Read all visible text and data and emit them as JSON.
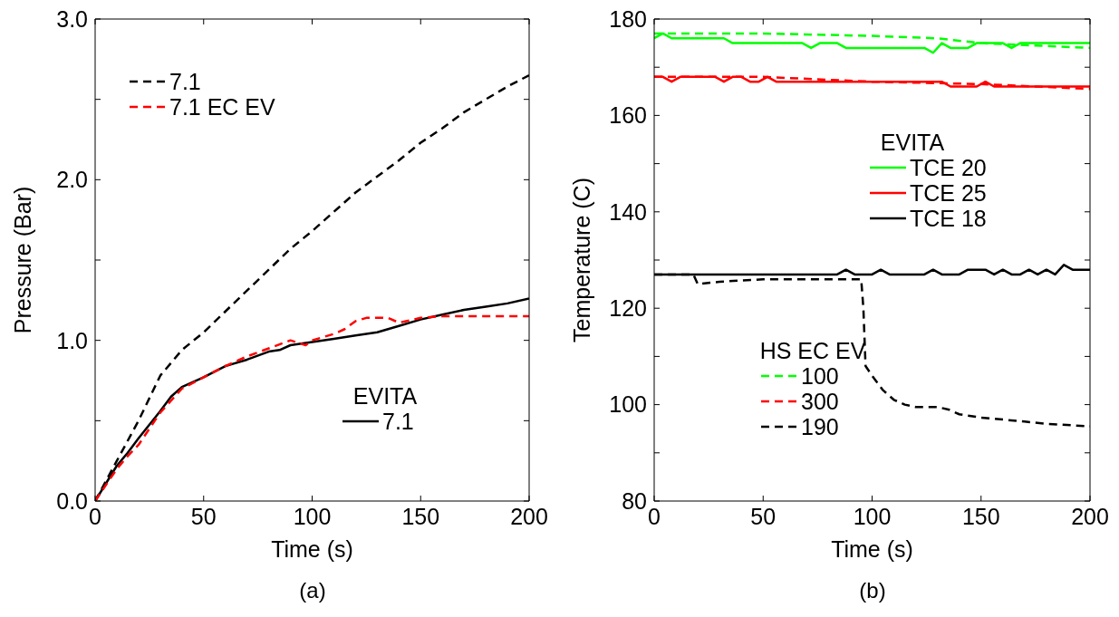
{
  "chart_data": [
    {
      "type": "line",
      "title": "(a)",
      "xlabel": "Time (s)",
      "ylabel": "Pressure (Bar)",
      "legend_title": "EVITA",
      "legend": "left",
      "marker": "none",
      "grid": false,
      "xlim": [
        0,
        200
      ],
      "xticks": [
        0,
        50,
        100,
        150,
        200
      ],
      "ylim": [
        0,
        3
      ],
      "yticks": [
        {
          "value": 0,
          "label": "0.0"
        },
        {
          "value": 0.5,
          "label": null
        },
        {
          "value": 1,
          "label": "1.0"
        },
        {
          "value": 1.5,
          "label": null
        },
        {
          "value": 2,
          "label": "2.0"
        },
        {
          "value": 2.5,
          "label": null
        },
        {
          "value": 3,
          "label": "3.0"
        }
      ],
      "series": [
        {
          "name": "7.1",
          "color": "#000000",
          "line_style": "solid",
          "x": [
            0,
            10,
            15,
            20,
            30,
            35,
            40,
            50,
            60,
            70,
            80,
            85,
            90,
            100,
            110,
            120,
            130,
            140,
            150,
            160,
            170,
            180,
            190,
            200
          ],
          "values": [
            0,
            0.22,
            0.3,
            0.39,
            0.56,
            0.65,
            0.71,
            0.77,
            0.84,
            0.88,
            0.93,
            0.94,
            0.97,
            0.99,
            1.01,
            1.03,
            1.05,
            1.09,
            1.13,
            1.16,
            1.19,
            1.21,
            1.23,
            1.26
          ]
        },
        {
          "name": "7.1",
          "color": "#000000",
          "line_style": "dashed",
          "x": [
            0,
            10,
            20,
            30,
            40,
            50,
            60,
            70,
            80,
            90,
            100,
            110,
            120,
            130,
            140,
            150,
            160,
            170,
            180,
            190,
            200
          ],
          "values": [
            0,
            0.25,
            0.5,
            0.78,
            0.94,
            1.05,
            1.18,
            1.31,
            1.44,
            1.57,
            1.68,
            1.8,
            1.92,
            2.02,
            2.12,
            2.23,
            2.32,
            2.42,
            2.5,
            2.58,
            2.65
          ]
        },
        {
          "name": "7.1 EC EV",
          "color": "#ff0000",
          "line_style": "dashed",
          "x": [
            0,
            10,
            15,
            20,
            30,
            40,
            50,
            60,
            70,
            80,
            90,
            97,
            100,
            110,
            115,
            120,
            125,
            135,
            140,
            150,
            160,
            200
          ],
          "values": [
            0,
            0.2,
            0.28,
            0.35,
            0.55,
            0.7,
            0.77,
            0.84,
            0.9,
            0.95,
            1.0,
            0.97,
            1.0,
            1.04,
            1.07,
            1.12,
            1.14,
            1.14,
            1.11,
            1.14,
            1.15,
            1.15
          ]
        }
      ]
    },
    {
      "type": "line",
      "title": "(b)",
      "xlabel": "Time (s)",
      "ylabel": "Temperature (C)",
      "legend_title": "EVITA",
      "legend": "bottom left",
      "marker": "none",
      "grid": false,
      "annotations": [
        "HS EC EV"
      ],
      "xlim": [
        0,
        200
      ],
      "xticks": [
        0,
        50,
        100,
        150,
        200
      ],
      "ylim": [
        80,
        180
      ],
      "yticks": [
        80,
        {
          "value": 90,
          "label": null
        },
        100,
        {
          "value": 110,
          "label": null
        },
        120,
        {
          "value": 130,
          "label": null
        },
        140,
        {
          "value": 150,
          "label": null
        },
        160,
        {
          "value": 170,
          "label": null
        },
        180
      ],
      "series": [
        {
          "name": "TCE 20",
          "color": "#00ff00",
          "line_style": "solid",
          "x": [
            0,
            4,
            8,
            32,
            36,
            68,
            72,
            76,
            84,
            88,
            124,
            128,
            132,
            136,
            144,
            148,
            160,
            164,
            168,
            200
          ],
          "values": [
            176,
            177,
            176,
            176,
            175,
            175,
            174,
            175,
            175,
            174,
            174,
            173,
            175,
            174,
            174,
            175,
            175,
            174,
            175,
            175
          ]
        },
        {
          "name": "TCE 25",
          "color": "#ff0000",
          "line_style": "solid",
          "x": [
            0,
            4,
            8,
            12,
            28,
            32,
            36,
            40,
            44,
            48,
            52,
            56,
            132,
            136,
            148,
            152,
            156,
            200
          ],
          "values": [
            168,
            168,
            167,
            168,
            168,
            167,
            168,
            168,
            167,
            167,
            168,
            167,
            167,
            166,
            166,
            167,
            166,
            166
          ]
        },
        {
          "name": "TCE 18",
          "color": "#000000",
          "line_style": "solid",
          "x": [
            0,
            84,
            88,
            92,
            100,
            104,
            108,
            124,
            128,
            132,
            140,
            144,
            152,
            156,
            160,
            164,
            168,
            172,
            176,
            180,
            184,
            188,
            192,
            200
          ],
          "values": [
            127,
            127,
            128,
            127,
            127,
            128,
            127,
            127,
            128,
            127,
            127,
            128,
            128,
            127,
            128,
            127,
            127,
            128,
            127,
            128,
            127,
            129,
            128,
            128
          ]
        },
        {
          "name": "100",
          "color": "#00ff00",
          "line_style": "dashed",
          "x": [
            0,
            50,
            100,
            130,
            150,
            175,
            200
          ],
          "values": [
            177,
            177,
            176.5,
            176,
            175,
            174.5,
            174
          ]
        },
        {
          "name": "300",
          "color": "#ff0000",
          "line_style": "dashed",
          "x": [
            0,
            50,
            100,
            150,
            200
          ],
          "values": [
            168,
            168,
            167,
            166.5,
            165.5
          ]
        },
        {
          "name": "190",
          "color": "#000000",
          "line_style": "dashed",
          "x": [
            0,
            18,
            20,
            30,
            50,
            70,
            95,
            96,
            97,
            100,
            105,
            110,
            115,
            120,
            130,
            135,
            140,
            150,
            170,
            180,
            200
          ],
          "values": [
            127,
            127,
            125,
            125.5,
            126,
            126,
            126,
            120,
            108,
            106,
            103,
            101,
            100,
            99.5,
            99.5,
            99,
            98,
            97.3,
            96.5,
            96,
            95.5
          ]
        }
      ]
    }
  ]
}
